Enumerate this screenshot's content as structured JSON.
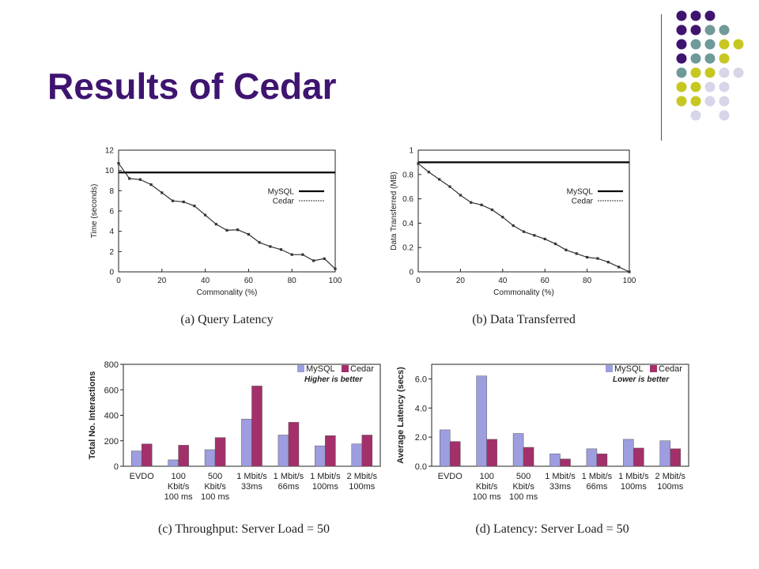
{
  "slide": {
    "title": "Results of Cedar"
  },
  "decor": {
    "dot_colors": [
      "#3f1470",
      "#6f9a99",
      "#c7c722",
      "#d6d6e8"
    ]
  },
  "chart_data": [
    {
      "id": "query_latency",
      "type": "line",
      "caption": "(a) Query Latency",
      "xlabel": "Commonality (%)",
      "ylabel": "Time (seconds)",
      "xlim": [
        0,
        100
      ],
      "ylim": [
        0,
        12
      ],
      "xticks": [
        0,
        20,
        40,
        60,
        80,
        100
      ],
      "yticks": [
        0,
        2,
        4,
        6,
        8,
        10,
        12
      ],
      "legend_position": "right",
      "series": [
        {
          "name": "MySQL",
          "color": "#000000",
          "style": "solid",
          "x": [
            0,
            100
          ],
          "y": [
            9.8,
            9.8
          ]
        },
        {
          "name": "Cedar",
          "color": "#333333",
          "style": "dotted-markers",
          "x": [
            0,
            5,
            10,
            15,
            20,
            25,
            30,
            35,
            40,
            45,
            50,
            55,
            60,
            65,
            70,
            75,
            80,
            85,
            90,
            95,
            100
          ],
          "y": [
            10.7,
            9.2,
            9.1,
            8.6,
            7.8,
            7.0,
            6.9,
            6.5,
            5.6,
            4.7,
            4.1,
            4.15,
            3.7,
            2.9,
            2.5,
            2.2,
            1.7,
            1.7,
            1.1,
            1.3,
            0.3
          ]
        }
      ]
    },
    {
      "id": "data_transferred",
      "type": "line",
      "caption": "(b) Data Transferred",
      "xlabel": "Commonality (%)",
      "ylabel": "Data Transferred (MB)",
      "xlim": [
        0,
        100
      ],
      "ylim": [
        0,
        1
      ],
      "xticks": [
        0,
        20,
        40,
        60,
        80,
        100
      ],
      "yticks": [
        0,
        0.2,
        0.4,
        0.6,
        0.8,
        1
      ],
      "legend_position": "right",
      "series": [
        {
          "name": "MySQL",
          "color": "#000000",
          "style": "solid",
          "x": [
            0,
            100
          ],
          "y": [
            0.9,
            0.9
          ]
        },
        {
          "name": "Cedar",
          "color": "#333333",
          "style": "dotted-markers",
          "x": [
            0,
            5,
            10,
            15,
            20,
            25,
            30,
            35,
            40,
            45,
            50,
            55,
            60,
            65,
            70,
            75,
            80,
            85,
            90,
            95,
            100
          ],
          "y": [
            0.89,
            0.82,
            0.76,
            0.7,
            0.63,
            0.57,
            0.55,
            0.51,
            0.45,
            0.38,
            0.33,
            0.3,
            0.27,
            0.23,
            0.18,
            0.15,
            0.12,
            0.11,
            0.08,
            0.04,
            0.0
          ]
        }
      ]
    },
    {
      "id": "throughput",
      "type": "bar",
      "caption": "(c) Throughput: Server Load = 50",
      "ylabel": "Total No. Interactions",
      "ylim": [
        0,
        800
      ],
      "yticks": [
        0,
        200,
        400,
        600,
        800
      ],
      "note": "Higher is better",
      "legend_position": "top-right",
      "categories": [
        [
          "EVDO"
        ],
        [
          "100",
          "Kbit/s",
          "100 ms"
        ],
        [
          "500",
          "Kbit/s",
          "100 ms"
        ],
        [
          "1 Mbit/s",
          "33ms"
        ],
        [
          "1 Mbit/s",
          "66ms"
        ],
        [
          "1 Mbit/s",
          "100ms"
        ],
        [
          "2 Mbit/s",
          "100ms"
        ]
      ],
      "series": [
        {
          "name": "MySQL",
          "color": "#9d9de0",
          "values": [
            120,
            50,
            130,
            370,
            245,
            160,
            175
          ]
        },
        {
          "name": "Cedar",
          "color": "#a3306a",
          "values": [
            175,
            165,
            225,
            630,
            345,
            240,
            245
          ]
        }
      ]
    },
    {
      "id": "latency",
      "type": "bar",
      "caption": "(d) Latency: Server Load = 50",
      "ylabel": "Average Latency (secs)",
      "ylim": [
        0,
        7
      ],
      "yticks": [
        0.0,
        2.0,
        4.0,
        6.0
      ],
      "ytick_labels": [
        "0.0",
        "2.0",
        "4.0",
        "6.0"
      ],
      "note": "Lower is better",
      "legend_position": "top-right",
      "categories": [
        [
          "EVDO"
        ],
        [
          "100",
          "Kbit/s",
          "100 ms"
        ],
        [
          "500",
          "Kbit/s",
          "100 ms"
        ],
        [
          "1 Mbit/s",
          "33ms"
        ],
        [
          "1 Mbit/s",
          "66ms"
        ],
        [
          "1 Mbit/s",
          "100ms"
        ],
        [
          "2 Mbit/s",
          "100ms"
        ]
      ],
      "series": [
        {
          "name": "MySQL",
          "color": "#9d9de0",
          "values": [
            2.5,
            6.2,
            2.25,
            0.85,
            1.2,
            1.85,
            1.75
          ]
        },
        {
          "name": "Cedar",
          "color": "#a3306a",
          "values": [
            1.7,
            1.85,
            1.3,
            0.5,
            0.85,
            1.25,
            1.2
          ]
        }
      ]
    }
  ]
}
